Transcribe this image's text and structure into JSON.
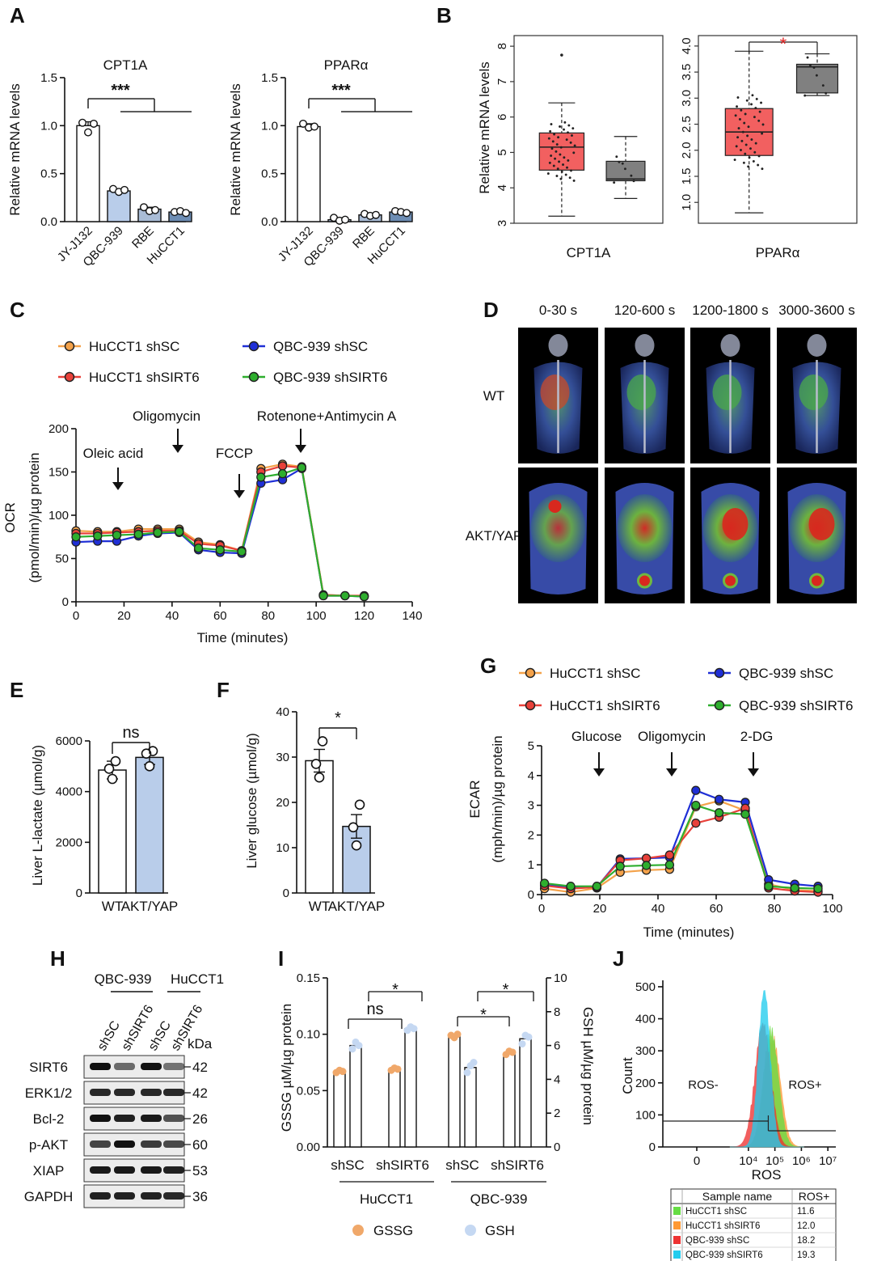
{
  "panels": {
    "A": {
      "label": "A",
      "ylabel": "Relative mRNA levels",
      "sig": "***",
      "categories": [
        "JY-J132",
        "QBC-939",
        "RBE",
        "HuCCT1"
      ]
    },
    "B": {
      "label": "B",
      "ylabel": "Relative mRNA levels"
    },
    "C": {
      "label": "C",
      "xlabel": "Time (minutes)",
      "ylabel_1": "OCR",
      "ylabel_2": "(pmol/min)/µg protein",
      "injections": [
        "Oleic acid",
        "Oligomycin",
        "FCCP",
        "Rotenone+Antimycin A"
      ],
      "legend": [
        "HuCCT1 shSC",
        "QBC-939 shSC",
        "HuCCT1 shSIRT6",
        "QBC-939 shSIRT6"
      ]
    },
    "D": {
      "label": "D",
      "columns": [
        "0-30 s",
        "120-600 s",
        "1200-1800 s",
        "3000-3600 s"
      ],
      "rows": [
        "WT",
        "AKT/YAP"
      ]
    },
    "E": {
      "label": "E",
      "ylabel": "Liver L-lactate (µmol/g)",
      "categories": [
        "WT",
        "AKT/YAP"
      ],
      "sig": "ns"
    },
    "F": {
      "label": "F",
      "ylabel": "Liver glucose (µmol/g)",
      "categories": [
        "WT",
        "AKT/YAP"
      ],
      "sig": "*"
    },
    "G": {
      "label": "G",
      "xlabel": "Time (minutes)",
      "ylabel_1": "ECAR",
      "ylabel_2": "(mph/min)/µg protein",
      "injections": [
        "Glucose",
        "Oligomycin",
        "2-DG"
      ],
      "legend": [
        "HuCCT1 shSC",
        "QBC-939 shSC",
        "HuCCT1 shSIRT6",
        "QBC-939 shSIRT6"
      ]
    },
    "H": {
      "label": "H",
      "groups": [
        "QBC-939",
        "HuCCT1"
      ],
      "lanes": [
        "shSC",
        "shSIRT6",
        "shSC",
        "shSIRT6"
      ],
      "kda_label": "kDa",
      "proteins": [
        {
          "name": "SIRT6",
          "kda": "42"
        },
        {
          "name": "ERK1/2",
          "kda": "42"
        },
        {
          "name": "Bcl-2",
          "kda": "26"
        },
        {
          "name": "p-AKT",
          "kda": "60"
        },
        {
          "name": "XIAP",
          "kda": "53"
        },
        {
          "name": "GAPDH",
          "kda": "36"
        }
      ]
    },
    "I": {
      "label": "I",
      "ylabel_left": "GSSG µM/µg protein",
      "ylabel_right": "GSH µM/µg protein",
      "x_labels": [
        "shSC",
        "shSIRT6",
        "shSC",
        "shSIRT6"
      ],
      "groups": [
        "HuCCT1",
        "QBC-939"
      ],
      "legend": [
        "GSSG",
        "GSH"
      ],
      "sig_labels": [
        "*",
        "ns",
        "*",
        "*"
      ]
    },
    "J": {
      "label": "J",
      "ylabel": "Count",
      "xlabel": "ROS",
      "gate_neg": "ROS-",
      "gate_pos": "ROS+",
      "table_header": [
        "Sample name",
        "ROS+"
      ],
      "table_rows": [
        {
          "name": "HuCCT1 shSC",
          "value": "11.6",
          "color": "#66dd44"
        },
        {
          "name": "HuCCT1 shSIRT6",
          "value": "12.0",
          "color": "#ff9933"
        },
        {
          "name": "QBC-939 shSC",
          "value": "18.2",
          "color": "#ee3333"
        },
        {
          "name": "QBC-939 shSIRT6",
          "value": "19.3",
          "color": "#22ccee"
        }
      ]
    }
  },
  "colors": {
    "HuCCT1 shSC": "#f4a24a",
    "QBC-939 shSC": "#1f2fd6",
    "HuCCT1 shSIRT6": "#e8413a",
    "QBC-939 shSIRT6": "#2eae2e",
    "box_red": "#f26060",
    "box_gray": "#808080",
    "bar_light": "#b9cdea",
    "bar_mid": "#a9bcd6",
    "bar_dark": "#6d8db4",
    "gssg": "#f0a86a",
    "gsh": "#c5d8f2"
  },
  "chart_data": [
    {
      "id": "A1",
      "type": "bar",
      "title": "CPT1A",
      "categories": [
        "JY-J132",
        "QBC-939",
        "RBE",
        "HuCCT1"
      ],
      "values": [
        1.0,
        0.32,
        0.13,
        0.1
      ],
      "errors": [
        0.04,
        0.02,
        0.02,
        0.01
      ],
      "points": [
        [
          1.03,
          0.93,
          1.02
        ],
        [
          0.34,
          0.31,
          0.33
        ],
        [
          0.15,
          0.11,
          0.12
        ],
        [
          0.1,
          0.11,
          0.09
        ]
      ],
      "ylim": [
        0,
        1.5
      ],
      "yticks": [
        "0.0",
        "0.5",
        "1.0",
        "1.5"
      ],
      "xlabel": "",
      "ylabel": "Relative mRNA levels"
    },
    {
      "id": "A2",
      "type": "bar",
      "title": "PPARα",
      "categories": [
        "JY-J132",
        "QBC-939",
        "RBE",
        "HuCCT1"
      ],
      "values": [
        0.99,
        0.02,
        0.07,
        0.1
      ],
      "errors": [
        0.03,
        0.02,
        0.01,
        0.01
      ],
      "points": [
        [
          1.02,
          0.98,
          0.99
        ],
        [
          0.04,
          0.01,
          0.02
        ],
        [
          0.08,
          0.06,
          0.07
        ],
        [
          0.11,
          0.1,
          0.09
        ]
      ],
      "ylim": [
        0,
        1.5
      ],
      "yticks": [
        "0.0",
        "0.5",
        "1.0",
        "1.5"
      ],
      "xlabel": "",
      "ylabel": "Relative mRNA levels"
    },
    {
      "id": "B1",
      "type": "box",
      "xlabel": "CPT1A",
      "ylim": [
        3,
        8.3
      ],
      "yticks": [
        "3",
        "4",
        "5",
        "6",
        "7",
        "8"
      ],
      "boxes": [
        {
          "min": 3.2,
          "q1": 4.5,
          "median": 5.15,
          "q3": 5.55,
          "max": 6.4,
          "outliers": [
            7.75
          ],
          "color": "#f26060"
        },
        {
          "min": 3.7,
          "q1": 4.2,
          "median": 4.25,
          "q3": 4.75,
          "max": 5.45,
          "outliers": [],
          "color": "#808080"
        }
      ]
    },
    {
      "id": "B2",
      "type": "box",
      "xlabel": "PPARα",
      "sig": "*",
      "ylim": [
        0.6,
        4.2
      ],
      "yticks": [
        "1.0",
        "1.5",
        "2.0",
        "2.5",
        "3.0",
        "3.5",
        "4.0"
      ],
      "boxes": [
        {
          "min": 0.8,
          "q1": 1.9,
          "median": 2.35,
          "q3": 2.8,
          "max": 3.9,
          "outliers": [],
          "color": "#f26060"
        },
        {
          "min": 3.05,
          "q1": 3.1,
          "median": 3.6,
          "q3": 3.65,
          "max": 3.85,
          "outliers": [],
          "color": "#808080"
        }
      ]
    },
    {
      "id": "C",
      "type": "line",
      "xlabel": "Time (minutes)",
      "ylabel": "OCR (pmol/min)/µg protein",
      "x": [
        0,
        9,
        17,
        26,
        34,
        43,
        51,
        60,
        69,
        77,
        86,
        94,
        103,
        112,
        120
      ],
      "xlim": [
        0,
        140
      ],
      "ylim": [
        0,
        200
      ],
      "xticks": [
        "0",
        "20",
        "40",
        "60",
        "80",
        "100",
        "120",
        "140"
      ],
      "yticks": [
        "0",
        "50",
        "100",
        "150",
        "200"
      ],
      "series": [
        {
          "name": "HuCCT1 shSC",
          "values": [
            82,
            81,
            81,
            84,
            84,
            84,
            69,
            66,
            59,
            154,
            159,
            156,
            8,
            7,
            7
          ]
        },
        {
          "name": "QBC-939 shSC",
          "values": [
            69,
            70,
            70,
            76,
            79,
            80,
            60,
            57,
            56,
            137,
            141,
            154,
            7,
            7,
            6
          ]
        },
        {
          "name": "HuCCT1 shSIRT6",
          "values": [
            79,
            79,
            80,
            81,
            82,
            82,
            67,
            65,
            59,
            150,
            157,
            155,
            8,
            7,
            7
          ]
        },
        {
          "name": "QBC-939 shSIRT6",
          "values": [
            75,
            76,
            77,
            78,
            80,
            81,
            62,
            60,
            58,
            144,
            148,
            155,
            7,
            7,
            6
          ]
        }
      ]
    },
    {
      "id": "E",
      "type": "bar",
      "categories": [
        "WT",
        "AKT/YAP"
      ],
      "values": [
        4850,
        5350
      ],
      "errors": [
        350,
        280
      ],
      "points": [
        [
          5200,
          4900,
          4500
        ],
        [
          5600,
          5500,
          5000
        ]
      ],
      "ylim": [
        0,
        6000
      ],
      "yticks": [
        "0",
        "2000",
        "4000",
        "6000"
      ],
      "ylabel": "Liver L-lactate (µmol/g)",
      "sig": "ns"
    },
    {
      "id": "F",
      "type": "bar",
      "categories": [
        "WT",
        "AKT/YAP"
      ],
      "values": [
        29.2,
        14.7
      ],
      "errors": [
        2.5,
        2.6
      ],
      "points": [
        [
          33.5,
          28.5,
          25.5
        ],
        [
          19.5,
          14.5,
          10.5
        ]
      ],
      "ylim": [
        0,
        40
      ],
      "yticks": [
        "0",
        "10",
        "20",
        "30",
        "40"
      ],
      "ylabel": "Liver glucose (µmol/g)",
      "sig": "*"
    },
    {
      "id": "G",
      "type": "line",
      "xlabel": "Time (minutes)",
      "ylabel": "ECAR (mph/min)/µg protein",
      "x": [
        1,
        10,
        19,
        27,
        36,
        44,
        53,
        61,
        70,
        78,
        87,
        95
      ],
      "xlim": [
        0,
        100
      ],
      "ylim": [
        0,
        5
      ],
      "xticks": [
        "0",
        "20",
        "40",
        "60",
        "80",
        "100"
      ],
      "yticks": [
        "0",
        "1",
        "2",
        "3",
        "4",
        "5"
      ],
      "series": [
        {
          "name": "HuCCT1 shSC",
          "values": [
            0.2,
            0.08,
            0.22,
            0.75,
            0.82,
            0.85,
            2.95,
            3.15,
            2.82,
            0.35,
            0.15,
            0.12
          ]
        },
        {
          "name": "QBC-939 shSC",
          "values": [
            0.35,
            0.25,
            0.25,
            1.2,
            1.22,
            1.25,
            3.5,
            3.2,
            3.1,
            0.5,
            0.35,
            0.28
          ]
        },
        {
          "name": "HuCCT1 shSIRT6",
          "values": [
            0.3,
            0.2,
            0.25,
            1.15,
            1.22,
            1.33,
            2.4,
            2.6,
            2.9,
            0.22,
            0.12,
            0.08
          ]
        },
        {
          "name": "QBC-939 shSIRT6",
          "values": [
            0.38,
            0.28,
            0.28,
            0.95,
            0.98,
            1.0,
            3.0,
            2.75,
            2.7,
            0.28,
            0.22,
            0.2
          ]
        }
      ]
    },
    {
      "id": "I",
      "type": "bar",
      "categories": [
        "HuCCT1 shSC",
        "HuCCT1 shSIRT6",
        "QBC-939 shSC",
        "QBC-939 shSIRT6"
      ],
      "series": [
        {
          "name": "GSSG",
          "axis": "left",
          "values": [
            0.067,
            0.069,
            0.098,
            0.083
          ],
          "points": [
            [
              0.066,
              0.068,
              0.067
            ],
            [
              0.068,
              0.07,
              0.069
            ],
            [
              0.099,
              0.097,
              0.1
            ],
            [
              0.082,
              0.085,
              0.084
            ]
          ]
        },
        {
          "name": "GSH",
          "axis": "right",
          "values": [
            6.0,
            7.0,
            4.7,
            6.4
          ],
          "points": [
            [
              5.8,
              6.2,
              6.0
            ],
            [
              6.9,
              7.1,
              7.0
            ],
            [
              4.4,
              4.8,
              5.0
            ],
            [
              6.1,
              6.6,
              6.5
            ]
          ]
        }
      ],
      "ylim_left": [
        0,
        0.15
      ],
      "yticks_left": [
        "0.00",
        "0.05",
        "0.10",
        "0.15"
      ],
      "ylim_right": [
        0,
        10
      ],
      "yticks_right": [
        "0",
        "2",
        "4",
        "6",
        "8",
        "10"
      ],
      "ylabel_left": "GSSG µM/µg protein",
      "ylabel_right": "GSH µM/µg protein"
    },
    {
      "id": "J",
      "type": "histogram",
      "xlabel": "ROS",
      "ylabel": "Count",
      "ylim": [
        0,
        520
      ],
      "yticks": [
        "0",
        "100",
        "200",
        "300",
        "400",
        "500"
      ],
      "xticks": [
        "0",
        "10^4",
        "10^5",
        "10^6",
        "10^7"
      ],
      "series": [
        {
          "name": "HuCCT1 shSC",
          "peak_log": 4.85,
          "width": 0.28,
          "height": 380
        },
        {
          "name": "HuCCT1 shSIRT6",
          "peak_log": 4.9,
          "width": 0.3,
          "height": 360
        },
        {
          "name": "QBC-939 shSC",
          "peak_log": 4.55,
          "width": 0.3,
          "height": 400
        },
        {
          "name": "QBC-939 shSIRT6",
          "peak_log": 4.6,
          "width": 0.22,
          "height": 510
        }
      ]
    }
  ]
}
